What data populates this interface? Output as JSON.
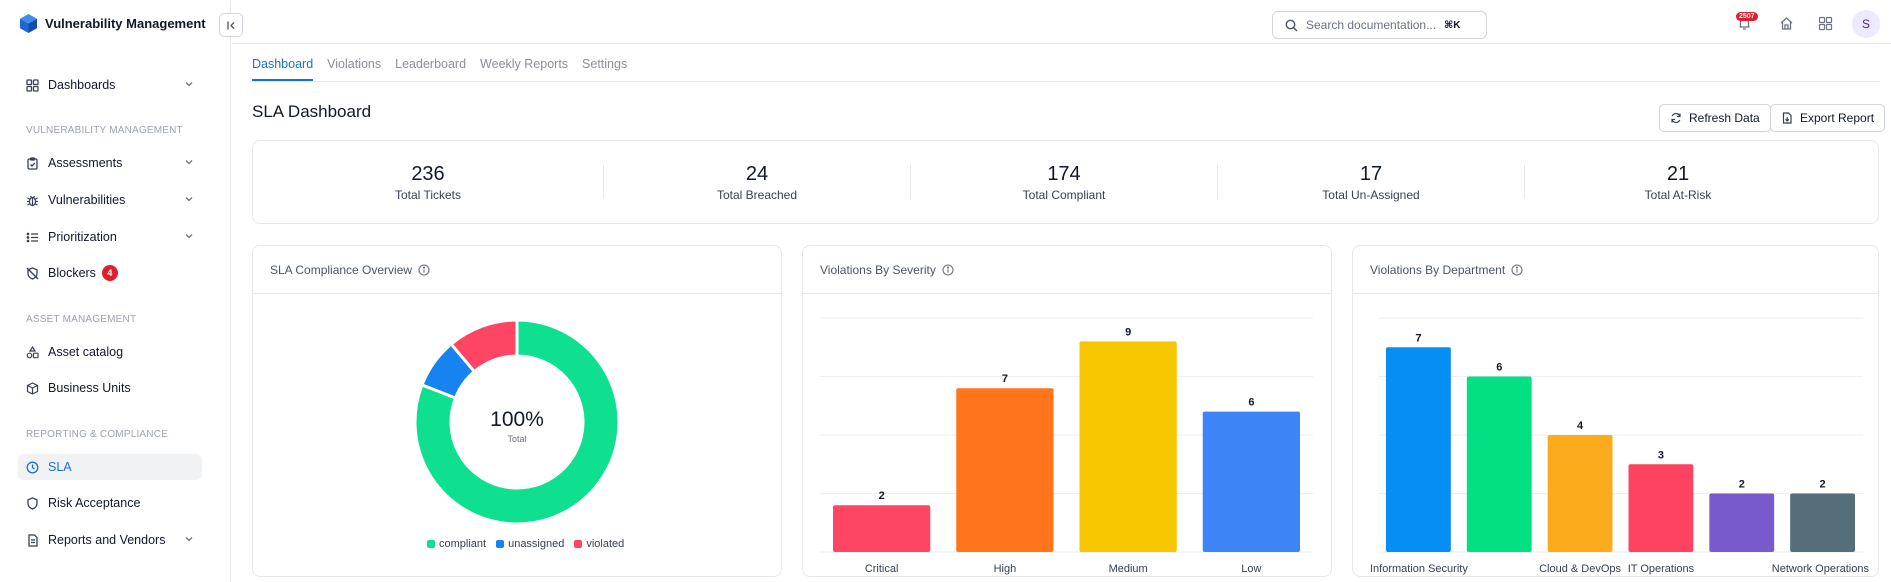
{
  "app": {
    "title": "Vulnerability Management"
  },
  "sidebar": {
    "dashboards": "Dashboards",
    "sections": [
      {
        "label": "VULNERABILITY MANAGEMENT",
        "items": [
          "Assessments",
          "Vulnerabilities",
          "Prioritization",
          "Blockers"
        ]
      },
      {
        "label": "ASSET MANAGEMENT",
        "items": [
          "Asset catalog",
          "Business Units"
        ]
      },
      {
        "label": "REPORTING & COMPLIANCE",
        "items": [
          "SLA",
          "Risk Acceptance",
          "Reports and Vendors"
        ]
      }
    ],
    "blockers_badge": "4"
  },
  "topbar": {
    "search_placeholder": "Search documentation...",
    "shortcut": "⌘K",
    "notification_count": "2507",
    "avatar_initial": "S"
  },
  "tabs": [
    "Dashboard",
    "Violations",
    "Leaderboard",
    "Weekly Reports",
    "Settings"
  ],
  "page": {
    "title": "SLA Dashboard",
    "refresh_label": "Refresh Data",
    "export_label": "Export Report"
  },
  "stats": [
    {
      "value": "236",
      "label": "Total Tickets"
    },
    {
      "value": "24",
      "label": "Total Breached"
    },
    {
      "value": "174",
      "label": "Total Compliant"
    },
    {
      "value": "17",
      "label": "Total Un-Assigned"
    },
    {
      "value": "21",
      "label": "Total At-Risk"
    }
  ],
  "colors": {
    "accent": "#1a6fd6",
    "compliant": "#0ee08f",
    "unassigned": "#1583f0",
    "violated": "#fe4563"
  },
  "chart_data": [
    {
      "type": "pie",
      "title": "SLA Compliance Overview",
      "center_value": "100%",
      "center_label": "Total",
      "categories": [
        "compliant",
        "unassigned",
        "violated"
      ],
      "values": [
        174,
        17,
        24
      ],
      "colors": [
        "#0ee08f",
        "#1583f0",
        "#fe4563"
      ],
      "legend": "bottom"
    },
    {
      "type": "bar",
      "title": "Violations By Severity",
      "categories": [
        "Critical",
        "High",
        "Medium",
        "Low"
      ],
      "values": [
        2,
        7,
        9,
        6
      ],
      "colors": [
        "#fe4563",
        "#fe751b",
        "#f6c700",
        "#3d84f6"
      ],
      "ylim": [
        0,
        10
      ],
      "grid": true
    },
    {
      "type": "bar",
      "title": "Violations By Department",
      "categories": [
        "Information Security",
        "",
        "Cloud & DevOps",
        "IT Operations",
        "",
        "Network Operations"
      ],
      "values": [
        7,
        6,
        4,
        3,
        2,
        2
      ],
      "colors": [
        "#058ff4",
        "#02e083",
        "#fbab1b",
        "#fe4361",
        "#785acd",
        "#546e7a"
      ],
      "ylim": [
        0,
        8
      ],
      "grid": true
    }
  ]
}
